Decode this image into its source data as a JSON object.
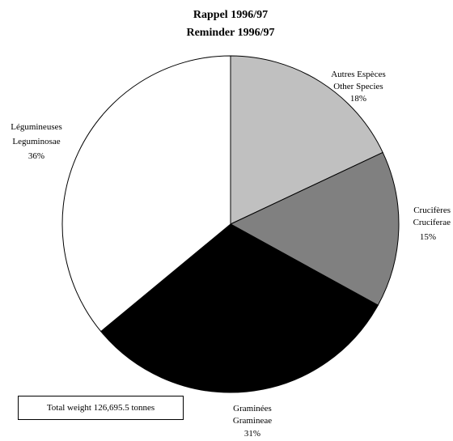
{
  "chart_data": {
    "type": "pie",
    "title_lines": [
      "Rappel 1996/97",
      "Reminder 1996/97"
    ],
    "slices": [
      {
        "label_fr": "Autres Espèces",
        "label_en": "Other Species",
        "pct_label": "18%",
        "value": 18,
        "color": "#c0c0c0"
      },
      {
        "label_fr": "Crucifères",
        "label_en": "Cruciferae",
        "pct_label": "15%",
        "value": 15,
        "color": "#808080"
      },
      {
        "label_fr": "Graminées",
        "label_en": "Gramineae",
        "pct_label": "31%",
        "value": 31,
        "color": "#000000"
      },
      {
        "label_fr": "Légumineuses",
        "label_en": "Leguminosae",
        "pct_label": "36%",
        "value": 36,
        "color": "#ffffff"
      }
    ],
    "note": "Total weight 126,695.5 tonnes"
  }
}
